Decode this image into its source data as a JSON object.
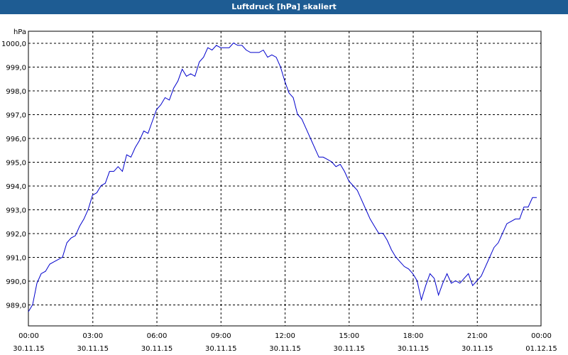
{
  "chart_data": {
    "type": "line",
    "title": "Luftdruck [hPa] skaliert",
    "ylabel": "hPa",
    "ylim": [
      988.5,
      1000.2
    ],
    "y_ticks": [
      "989,0",
      "990,0",
      "991,0",
      "992,0",
      "993,0",
      "994,0",
      "995,0",
      "996,0",
      "997,0",
      "998,0",
      "999,0",
      "1000,0"
    ],
    "x_ticks": [
      {
        "time": "00:00",
        "date": "30.11.15"
      },
      {
        "time": "03:00",
        "date": "30.11.15"
      },
      {
        "time": "06:00",
        "date": "30.11.15"
      },
      {
        "time": "09:00",
        "date": "30.11.15"
      },
      {
        "time": "12:00",
        "date": "30.11.15"
      },
      {
        "time": "15:00",
        "date": "30.11.15"
      },
      {
        "time": "18:00",
        "date": "30.11.15"
      },
      {
        "time": "21:00",
        "date": "30.11.15"
      },
      {
        "time": "00:00",
        "date": "01.12.15"
      }
    ],
    "xlim": [
      "30.11.15 00:00",
      "01.12.15 00:00"
    ],
    "grid": true,
    "line_color": "#0000cc",
    "series": [
      {
        "x_hours": [
          0,
          0.2,
          0.4,
          0.6,
          0.8,
          1.0,
          1.2,
          1.4,
          1.6,
          1.8,
          2.0,
          2.2,
          2.4,
          2.6,
          2.8,
          3.0,
          3.2,
          3.4,
          3.6,
          3.8,
          4.0,
          4.2,
          4.4,
          4.6,
          4.8,
          5.0,
          5.2,
          5.4,
          5.6,
          5.8,
          6.0,
          6.2,
          6.4,
          6.6,
          6.8,
          7.0,
          7.2,
          7.4,
          7.6,
          7.8,
          8.0,
          8.2,
          8.4,
          8.6,
          8.8,
          9.0,
          9.2,
          9.4,
          9.6,
          9.8,
          10.0,
          10.2,
          10.4,
          10.6,
          10.8,
          11.0,
          11.2,
          11.4,
          11.6,
          11.8,
          12.0,
          12.2,
          12.4,
          12.6,
          12.8,
          13.0,
          13.2,
          13.4,
          13.6,
          13.8,
          14.0,
          14.2,
          14.4,
          14.6,
          14.8,
          15.0,
          15.2,
          15.4,
          15.6,
          15.8,
          16.0,
          16.2,
          16.4,
          16.6,
          16.8,
          17.0,
          17.2,
          17.4,
          17.6,
          17.8,
          18.0,
          18.2,
          18.4,
          18.6,
          18.8,
          19.0,
          19.2,
          19.4,
          19.6,
          19.8,
          20.0,
          20.2,
          20.4,
          20.6,
          20.8,
          21.0,
          21.2,
          21.4,
          21.6,
          21.8,
          22.0,
          22.2,
          22.4,
          22.6,
          22.8,
          23.0,
          23.2,
          23.4,
          23.6,
          23.8
        ],
        "values": [
          988.7,
          989.0,
          989.9,
          990.3,
          990.4,
          990.7,
          990.8,
          990.9,
          991.0,
          991.6,
          991.8,
          991.9,
          992.3,
          992.6,
          993.0,
          993.6,
          993.7,
          994.0,
          994.1,
          994.6,
          994.6,
          994.8,
          994.6,
          995.3,
          995.2,
          995.6,
          995.9,
          996.3,
          996.2,
          996.7,
          997.2,
          997.4,
          997.7,
          997.6,
          998.1,
          998.4,
          998.9,
          998.6,
          998.7,
          998.6,
          999.2,
          999.4,
          999.8,
          999.7,
          999.9,
          999.8,
          999.8,
          999.8,
          1000.0,
          999.9,
          999.9,
          999.7,
          999.6,
          999.6,
          999.6,
          999.7,
          999.4,
          999.5,
          999.4,
          999.0,
          998.4,
          997.9,
          997.7,
          997.0,
          996.8,
          996.4,
          996.0,
          995.6,
          995.2,
          995.2,
          995.1,
          995.0,
          994.8,
          994.9,
          994.6,
          994.2,
          994.0,
          993.8,
          993.4,
          993.0,
          992.6,
          992.3,
          992.0,
          992.0,
          991.7,
          991.3,
          991.0,
          990.8,
          990.6,
          990.5,
          990.3,
          990.0,
          989.2,
          989.8,
          990.3,
          990.1,
          989.4,
          989.9,
          990.3,
          989.9,
          990.0,
          989.9,
          990.1,
          990.3,
          989.8,
          990.0,
          990.2,
          990.6,
          991.0,
          991.4,
          991.6,
          992.0,
          992.4,
          992.5,
          992.6,
          992.6,
          993.1,
          993.1,
          993.5,
          993.5
        ]
      }
    ]
  }
}
